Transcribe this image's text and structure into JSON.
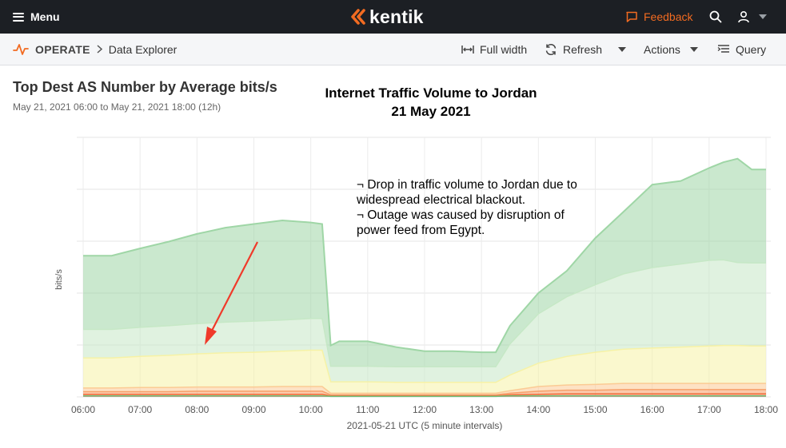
{
  "header": {
    "menu_label": "Menu",
    "logo_text": "kentik",
    "feedback_label": "Feedback"
  },
  "subheader": {
    "section": "OPERATE",
    "page": "Data Explorer",
    "full_width_label": "Full width",
    "refresh_label": "Refresh",
    "actions_label": "Actions",
    "query_label": "Query"
  },
  "panel": {
    "title": "Top Dest AS Number by Average bits/s",
    "time_range": "May 21, 2021 06:00 to May 21, 2021 18:00 (12h)"
  },
  "overlay": {
    "title_line1": "Internet Traffic Volume to Jordan",
    "title_line2": "21 May 2021",
    "annotation_line1": "¬ Drop in traffic volume to Jordan due to",
    "annotation_line2": "widespread electrical blackout.",
    "annotation_line3": "¬ Outage was caused by disruption of",
    "annotation_line4": "power feed from Egypt."
  },
  "colors": {
    "accent": "#f26b21",
    "topbar": "#1c1f24",
    "arrow": "#f03a2a"
  },
  "chart_data": {
    "type": "area",
    "stacked": true,
    "ylabel": "bits/s",
    "xlabel": "2021-05-21 UTC (5 minute intervals)",
    "x_ticks": [
      "06:00",
      "07:00",
      "08:00",
      "09:00",
      "10:00",
      "11:00",
      "12:00",
      "13:00",
      "14:00",
      "15:00",
      "16:00",
      "17:00",
      "18:00"
    ],
    "x": [
      6.0,
      6.5,
      7.0,
      7.5,
      8.0,
      8.5,
      9.0,
      9.5,
      10.0,
      10.2,
      10.35,
      10.5,
      11.0,
      11.5,
      12.0,
      12.5,
      13.0,
      13.25,
      13.5,
      14.0,
      14.5,
      15.0,
      15.5,
      16.0,
      16.5,
      17.0,
      17.25,
      17.5,
      17.75,
      18.0
    ],
    "ylim": [
      0,
      5
    ],
    "y_grid_lines": 5,
    "grid": true,
    "series": [
      {
        "color": "#e0412f",
        "values": [
          0.02,
          0.02,
          0.02,
          0.02,
          0.02,
          0.02,
          0.02,
          0.02,
          0.02,
          0.02,
          0.01,
          0.01,
          0.01,
          0.01,
          0.01,
          0.01,
          0.01,
          0.01,
          0.02,
          0.02,
          0.02,
          0.02,
          0.02,
          0.02,
          0.02,
          0.02,
          0.02,
          0.02,
          0.02,
          0.02
        ]
      },
      {
        "color": "#f0703c",
        "values": [
          0.03,
          0.03,
          0.03,
          0.03,
          0.03,
          0.03,
          0.03,
          0.03,
          0.03,
          0.03,
          0.01,
          0.01,
          0.01,
          0.01,
          0.01,
          0.01,
          0.01,
          0.01,
          0.02,
          0.03,
          0.04,
          0.04,
          0.04,
          0.04,
          0.04,
          0.04,
          0.04,
          0.04,
          0.04,
          0.04
        ]
      },
      {
        "color": "#f7a06a",
        "values": [
          0.05,
          0.05,
          0.05,
          0.05,
          0.06,
          0.06,
          0.06,
          0.06,
          0.06,
          0.06,
          0.02,
          0.02,
          0.02,
          0.02,
          0.02,
          0.02,
          0.02,
          0.02,
          0.03,
          0.06,
          0.07,
          0.07,
          0.08,
          0.08,
          0.08,
          0.08,
          0.08,
          0.08,
          0.08,
          0.08
        ]
      },
      {
        "color": "#fbcb94",
        "values": [
          0.07,
          0.07,
          0.08,
          0.08,
          0.08,
          0.08,
          0.08,
          0.09,
          0.09,
          0.09,
          0.03,
          0.03,
          0.03,
          0.03,
          0.03,
          0.03,
          0.03,
          0.03,
          0.05,
          0.09,
          0.1,
          0.11,
          0.12,
          0.12,
          0.12,
          0.12,
          0.12,
          0.12,
          0.12,
          0.12
        ]
      },
      {
        "color": "#f6f2a6",
        "values": [
          0.58,
          0.58,
          0.6,
          0.62,
          0.64,
          0.66,
          0.67,
          0.68,
          0.7,
          0.7,
          0.22,
          0.22,
          0.22,
          0.21,
          0.21,
          0.21,
          0.21,
          0.21,
          0.3,
          0.45,
          0.55,
          0.62,
          0.66,
          0.68,
          0.7,
          0.72,
          0.73,
          0.73,
          0.72,
          0.72
        ]
      },
      {
        "color": "#c6e8c6",
        "values": [
          0.55,
          0.55,
          0.56,
          0.57,
          0.58,
          0.59,
          0.6,
          0.6,
          0.61,
          0.61,
          0.3,
          0.3,
          0.3,
          0.3,
          0.3,
          0.3,
          0.3,
          0.3,
          0.6,
          0.95,
          1.15,
          1.3,
          1.45,
          1.55,
          1.6,
          1.65,
          1.65,
          1.6,
          1.6,
          1.6
        ]
      },
      {
        "color": "#9fd6a6",
        "values": [
          1.42,
          1.42,
          1.52,
          1.62,
          1.73,
          1.82,
          1.87,
          1.92,
          1.85,
          1.82,
          0.4,
          0.48,
          0.48,
          0.38,
          0.3,
          0.3,
          0.28,
          0.28,
          0.35,
          0.4,
          0.5,
          0.9,
          1.2,
          1.6,
          1.6,
          1.78,
          1.88,
          2.0,
          1.8,
          1.8
        ]
      }
    ]
  }
}
